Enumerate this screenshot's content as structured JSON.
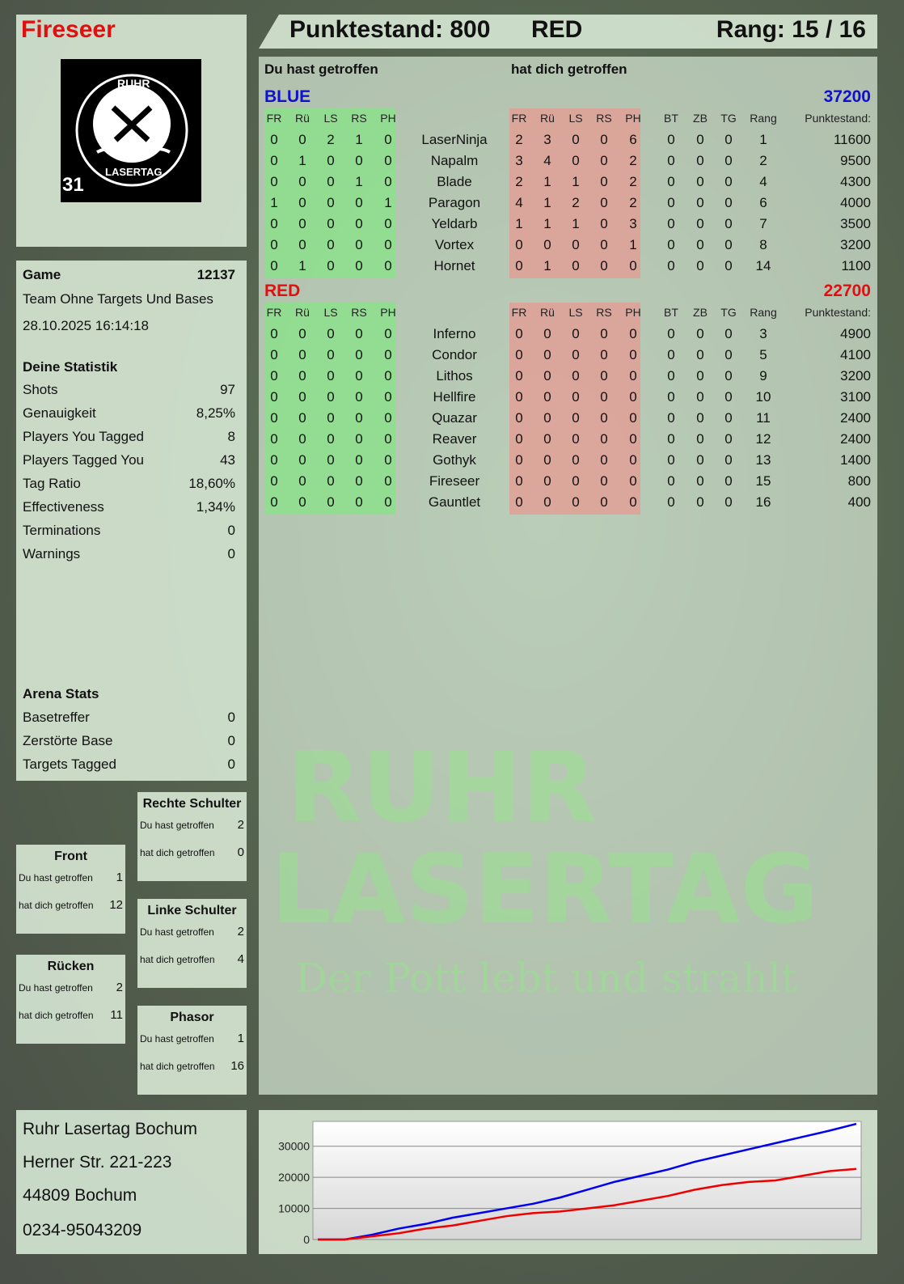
{
  "player": {
    "name": "Fireseer",
    "name_color": "#e01010"
  },
  "logo": {
    "text_top": "RUHR",
    "text_bottom": "LASERTAG",
    "number": "31"
  },
  "header": {
    "score_label": "Punktestand: 800",
    "team": "RED",
    "rank": "Rang: 15 / 16"
  },
  "sections": {
    "you_hit": "Du hast getroffen",
    "hit_you": "hat dich getroffen"
  },
  "columns": {
    "hits": [
      "FR",
      "Rü",
      "LS",
      "RS",
      "PH"
    ],
    "extra": [
      "BT",
      "ZB",
      "TG",
      "Rang",
      "Punktestand:"
    ]
  },
  "teams": [
    {
      "name": "BLUE",
      "color": "#1010d0",
      "total": "37200",
      "players": [
        {
          "name": "LaserNinja",
          "you_hit": [
            "0",
            "0",
            "2",
            "1",
            "0"
          ],
          "hit_you": [
            "2",
            "3",
            "0",
            "0",
            "6"
          ],
          "extra": [
            "0",
            "0",
            "0",
            "1",
            "11600"
          ]
        },
        {
          "name": "Napalm",
          "you_hit": [
            "0",
            "1",
            "0",
            "0",
            "0"
          ],
          "hit_you": [
            "3",
            "4",
            "0",
            "0",
            "2"
          ],
          "extra": [
            "0",
            "0",
            "0",
            "2",
            "9500"
          ]
        },
        {
          "name": "Blade",
          "you_hit": [
            "0",
            "0",
            "0",
            "1",
            "0"
          ],
          "hit_you": [
            "2",
            "1",
            "1",
            "0",
            "2"
          ],
          "extra": [
            "0",
            "0",
            "0",
            "4",
            "4300"
          ]
        },
        {
          "name": "Paragon",
          "you_hit": [
            "1",
            "0",
            "0",
            "0",
            "1"
          ],
          "hit_you": [
            "4",
            "1",
            "2",
            "0",
            "2"
          ],
          "extra": [
            "0",
            "0",
            "0",
            "6",
            "4000"
          ]
        },
        {
          "name": "Yeldarb",
          "you_hit": [
            "0",
            "0",
            "0",
            "0",
            "0"
          ],
          "hit_you": [
            "1",
            "1",
            "1",
            "0",
            "3"
          ],
          "extra": [
            "0",
            "0",
            "0",
            "7",
            "3500"
          ]
        },
        {
          "name": "Vortex",
          "you_hit": [
            "0",
            "0",
            "0",
            "0",
            "0"
          ],
          "hit_you": [
            "0",
            "0",
            "0",
            "0",
            "1"
          ],
          "extra": [
            "0",
            "0",
            "0",
            "8",
            "3200"
          ]
        },
        {
          "name": "Hornet",
          "you_hit": [
            "0",
            "1",
            "0",
            "0",
            "0"
          ],
          "hit_you": [
            "0",
            "1",
            "0",
            "0",
            "0"
          ],
          "extra": [
            "0",
            "0",
            "0",
            "14",
            "1100"
          ]
        }
      ]
    },
    {
      "name": "RED",
      "color": "#e01010",
      "total": "22700",
      "players": [
        {
          "name": "Inferno",
          "you_hit": [
            "0",
            "0",
            "0",
            "0",
            "0"
          ],
          "hit_you": [
            "0",
            "0",
            "0",
            "0",
            "0"
          ],
          "extra": [
            "0",
            "0",
            "0",
            "3",
            "4900"
          ]
        },
        {
          "name": "Condor",
          "you_hit": [
            "0",
            "0",
            "0",
            "0",
            "0"
          ],
          "hit_you": [
            "0",
            "0",
            "0",
            "0",
            "0"
          ],
          "extra": [
            "0",
            "0",
            "0",
            "5",
            "4100"
          ]
        },
        {
          "name": "Lithos",
          "you_hit": [
            "0",
            "0",
            "0",
            "0",
            "0"
          ],
          "hit_you": [
            "0",
            "0",
            "0",
            "0",
            "0"
          ],
          "extra": [
            "0",
            "0",
            "0",
            "9",
            "3200"
          ]
        },
        {
          "name": "Hellfire",
          "you_hit": [
            "0",
            "0",
            "0",
            "0",
            "0"
          ],
          "hit_you": [
            "0",
            "0",
            "0",
            "0",
            "0"
          ],
          "extra": [
            "0",
            "0",
            "0",
            "10",
            "3100"
          ]
        },
        {
          "name": "Quazar",
          "you_hit": [
            "0",
            "0",
            "0",
            "0",
            "0"
          ],
          "hit_you": [
            "0",
            "0",
            "0",
            "0",
            "0"
          ],
          "extra": [
            "0",
            "0",
            "0",
            "11",
            "2400"
          ]
        },
        {
          "name": "Reaver",
          "you_hit": [
            "0",
            "0",
            "0",
            "0",
            "0"
          ],
          "hit_you": [
            "0",
            "0",
            "0",
            "0",
            "0"
          ],
          "extra": [
            "0",
            "0",
            "0",
            "12",
            "2400"
          ]
        },
        {
          "name": "Gothyk",
          "you_hit": [
            "0",
            "0",
            "0",
            "0",
            "0"
          ],
          "hit_you": [
            "0",
            "0",
            "0",
            "0",
            "0"
          ],
          "extra": [
            "0",
            "0",
            "0",
            "13",
            "1400"
          ]
        },
        {
          "name": "Fireseer",
          "you_hit": [
            "0",
            "0",
            "0",
            "0",
            "0"
          ],
          "hit_you": [
            "0",
            "0",
            "0",
            "0",
            "0"
          ],
          "extra": [
            "0",
            "0",
            "0",
            "15",
            "800"
          ]
        },
        {
          "name": "Gauntlet",
          "you_hit": [
            "0",
            "0",
            "0",
            "0",
            "0"
          ],
          "hit_you": [
            "0",
            "0",
            "0",
            "0",
            "0"
          ],
          "extra": [
            "0",
            "0",
            "0",
            "16",
            "400"
          ]
        }
      ]
    }
  ],
  "game": {
    "label": "Game",
    "id": "12137",
    "mode": "Team Ohne Targets Und Bases",
    "datetime": "28.10.2025 16:14:18"
  },
  "stats": {
    "title": "Deine Statistik",
    "rows": [
      {
        "label": "Shots",
        "value": "97"
      },
      {
        "label": "Genauigkeit",
        "value": "8,25%"
      },
      {
        "label": "Players You Tagged",
        "value": "8"
      },
      {
        "label": "Players Tagged You",
        "value": "43"
      },
      {
        "label": "Tag Ratio",
        "value": "18,60%"
      },
      {
        "label": "Effectiveness",
        "value": "1,34%"
      },
      {
        "label": "Terminations",
        "value": "0"
      },
      {
        "label": "Warnings",
        "value": "0"
      }
    ]
  },
  "arena": {
    "title": "Arena Stats",
    "rows": [
      {
        "label": "Basetreffer",
        "value": "0"
      },
      {
        "label": "Zerstörte Base",
        "value": "0"
      },
      {
        "label": "Targets Tagged",
        "value": "0"
      }
    ]
  },
  "zones": [
    {
      "title": "Rechte Schulter",
      "you_hit_label": "Du hast getroffen",
      "you_hit": "2",
      "hit_you_label": "hat dich getroffen",
      "hit_you": "0"
    },
    {
      "title": "Front",
      "you_hit_label": "Du hast getroffen",
      "you_hit": "1",
      "hit_you_label": "hat dich getroffen",
      "hit_you": "12"
    },
    {
      "title": "Linke Schulter",
      "you_hit_label": "Du hast getroffen",
      "you_hit": "2",
      "hit_you_label": "hat dich getroffen",
      "hit_you": "4"
    },
    {
      "title": "Rücken",
      "you_hit_label": "Du hast getroffen",
      "you_hit": "2",
      "hit_you_label": "hat dich getroffen",
      "hit_you": "11"
    },
    {
      "title": "Phasor",
      "you_hit_label": "Du hast getroffen",
      "you_hit": "1",
      "hit_you_label": "hat dich getroffen",
      "hit_you": "16"
    }
  ],
  "address": [
    "Ruhr Lasertag Bochum",
    "Herner Str. 221-223",
    "44809 Bochum",
    "0234-95043209"
  ],
  "watermark": {
    "line1": "RUHR",
    "line2": "LASERTAG",
    "slogan": "Der Pott lebt und strahlt"
  },
  "chart_data": {
    "type": "line",
    "ylim": [
      0,
      38000
    ],
    "yticks": [
      "0",
      "10000",
      "20000",
      "30000"
    ],
    "grid": true,
    "series": [
      {
        "color": "#0000ee",
        "values": [
          0,
          0,
          1500,
          3500,
          5000,
          7000,
          8500,
          10000,
          11500,
          13500,
          16000,
          18500,
          20500,
          22500,
          25000,
          27000,
          29000,
          31000,
          33000,
          35000,
          37200
        ]
      },
      {
        "color": "#ee0000",
        "values": [
          0,
          0,
          1000,
          2000,
          3500,
          4500,
          6000,
          7500,
          8500,
          9000,
          10000,
          11000,
          12500,
          14000,
          16000,
          17500,
          18500,
          19000,
          20500,
          22000,
          22700
        ]
      }
    ]
  }
}
